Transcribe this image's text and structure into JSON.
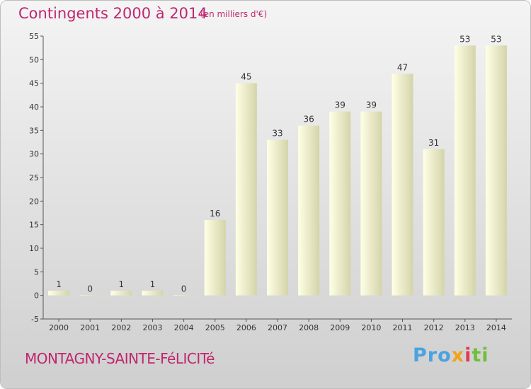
{
  "header": {
    "title": "Contingents 2000 à 2014",
    "subtitle": "(en milliers d'€)"
  },
  "footer": {
    "commune": "MONTAGNY-SAINTE-FéLICITé",
    "brand": {
      "p1": "Pro",
      "p2": "x",
      "p3": "i",
      "p4": "ti"
    }
  },
  "colors": {
    "accent": "#c0266f",
    "bar_light": "#ffffe6",
    "bar_dark": "#d4d4aa",
    "background_top": "#f4f4f4",
    "background_bottom": "#cfcfcf"
  },
  "chart_data": {
    "type": "bar",
    "title": "Contingents 2000 à 2014",
    "subtitle": "(en milliers d'€)",
    "categories": [
      "2000",
      "2001",
      "2002",
      "2003",
      "2004",
      "2005",
      "2006",
      "2007",
      "2008",
      "2009",
      "2010",
      "2011",
      "2012",
      "2013",
      "2014"
    ],
    "values": [
      1,
      0,
      1,
      1,
      0,
      16,
      45,
      33,
      36,
      39,
      39,
      47,
      31,
      53,
      53
    ],
    "ylim": [
      -5,
      55
    ],
    "yticks": [
      -5,
      0,
      5,
      10,
      15,
      20,
      25,
      30,
      35,
      40,
      45,
      50,
      55
    ],
    "grid": false,
    "legend": "none"
  }
}
